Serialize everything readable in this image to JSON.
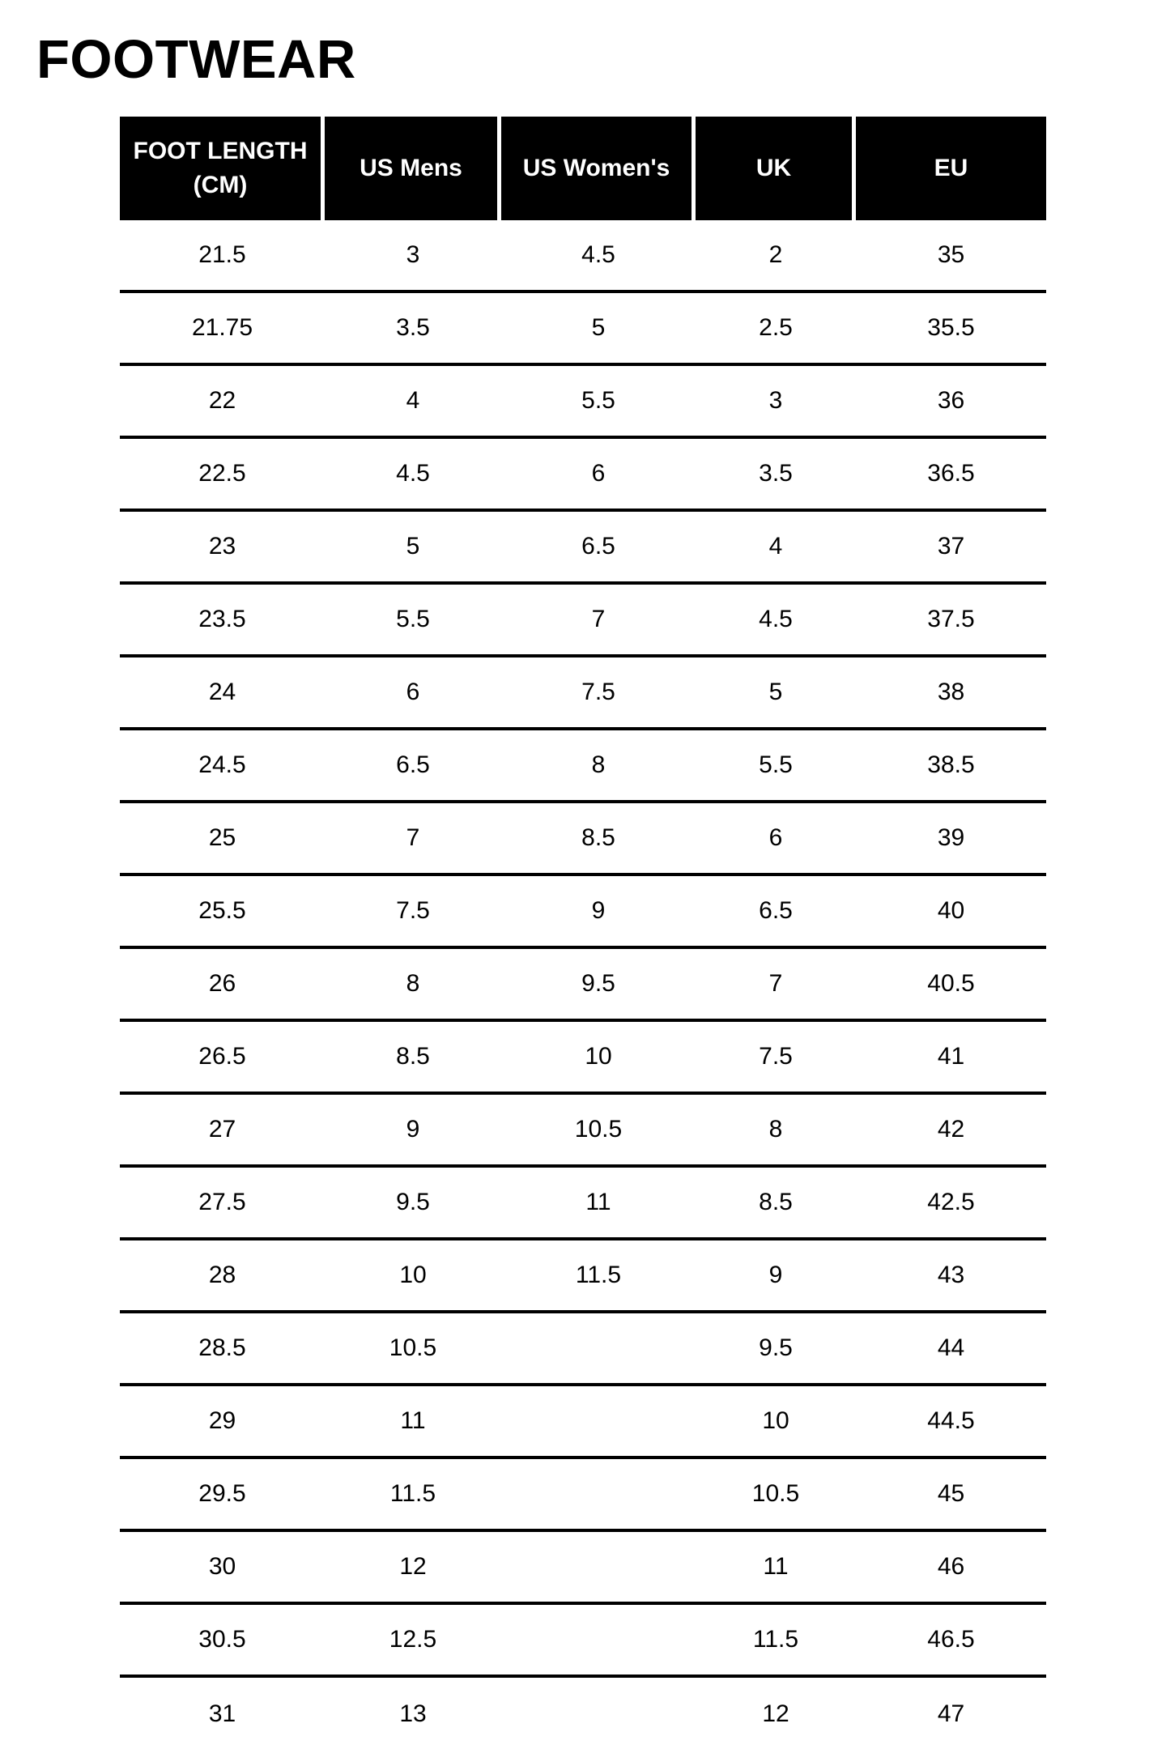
{
  "page": {
    "title": "FOOTWEAR"
  },
  "colors": {
    "background": "#ffffff",
    "ink": "#000000",
    "header_bg": "#000000",
    "header_text": "#ffffff",
    "row_divider": "#000000"
  },
  "table": {
    "headers": [
      {
        "id": "foot-length-cm",
        "lines": [
          "FOOT LENGTH",
          "(CM)"
        ]
      },
      {
        "id": "us-mens",
        "lines": [
          "US Mens"
        ]
      },
      {
        "id": "us-womens",
        "lines": [
          "US Women's"
        ]
      },
      {
        "id": "uk",
        "lines": [
          "UK"
        ]
      },
      {
        "id": "eu",
        "lines": [
          "EU"
        ]
      }
    ],
    "rows": [
      [
        "21.5",
        "3",
        "4.5",
        "2",
        "35"
      ],
      [
        "21.75",
        "3.5",
        "5",
        "2.5",
        "35.5"
      ],
      [
        "22",
        "4",
        "5.5",
        "3",
        "36"
      ],
      [
        "22.5",
        "4.5",
        "6",
        "3.5",
        "36.5"
      ],
      [
        "23",
        "5",
        "6.5",
        "4",
        "37"
      ],
      [
        "23.5",
        "5.5",
        "7",
        "4.5",
        "37.5"
      ],
      [
        "24",
        "6",
        "7.5",
        "5",
        "38"
      ],
      [
        "24.5",
        "6.5",
        "8",
        "5.5",
        "38.5"
      ],
      [
        "25",
        "7",
        "8.5",
        "6",
        "39"
      ],
      [
        "25.5",
        "7.5",
        "9",
        "6.5",
        "40"
      ],
      [
        "26",
        "8",
        "9.5",
        "7",
        "40.5"
      ],
      [
        "26.5",
        "8.5",
        "10",
        "7.5",
        "41"
      ],
      [
        "27",
        "9",
        "10.5",
        "8",
        "42"
      ],
      [
        "27.5",
        "9.5",
        "11",
        "8.5",
        "42.5"
      ],
      [
        "28",
        "10",
        "11.5",
        "9",
        "43"
      ],
      [
        "28.5",
        "10.5",
        "",
        "9.5",
        "44"
      ],
      [
        "29",
        "11",
        "",
        "10",
        "44.5"
      ],
      [
        "29.5",
        "11.5",
        "",
        "10.5",
        "45"
      ],
      [
        "30",
        "12",
        "",
        "11",
        "46"
      ],
      [
        "30.5",
        "12.5",
        "",
        "11.5",
        "46.5"
      ],
      [
        "31",
        "13",
        "",
        "12",
        "47"
      ]
    ]
  }
}
